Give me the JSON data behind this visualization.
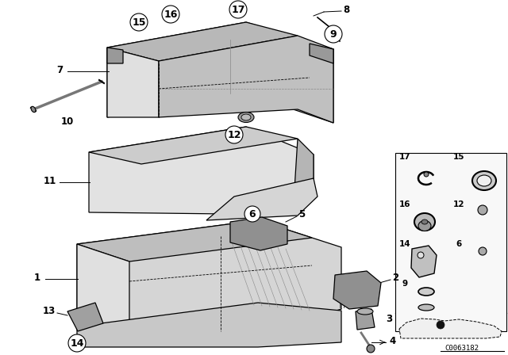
{
  "bg_color": "#ffffff",
  "fig_width": 6.4,
  "fig_height": 4.48,
  "dpi": 100,
  "callout_code": "C0063182",
  "colors": {
    "line": "#000000",
    "bg": "#ffffff",
    "label_circle_fill": "#ffffff",
    "part_fill_light": "#e8e8e8",
    "part_fill_mid": "#cccccc",
    "part_fill_dark": "#aaaaaa"
  }
}
